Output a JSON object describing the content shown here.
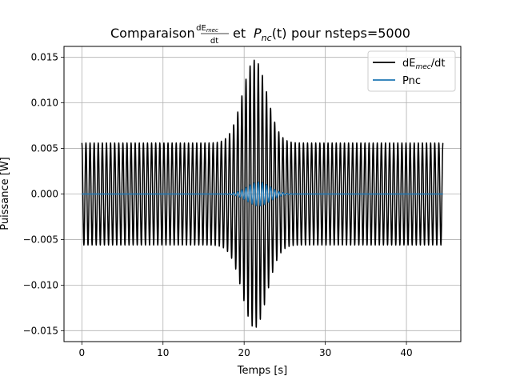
{
  "chart_data": {
    "type": "line",
    "title_main": "Comparaison",
    "title_frac_num": "dE",
    "title_frac_num_sub": "mec",
    "title_frac_den": "dt",
    "title_et": "et",
    "title_P": "P",
    "title_P_sub": "nc",
    "title_P_arg": "(t)",
    "title_tail": "pour nsteps=5000",
    "xlabel": "Temps [s]",
    "ylabel": "Puissance [W]",
    "xlim": [
      -2.2,
      46.7
    ],
    "ylim": [
      -0.0162,
      0.0162
    ],
    "xticks": [
      0,
      10,
      20,
      30,
      40
    ],
    "xtick_labels": [
      "0",
      "10",
      "20",
      "30",
      "40"
    ],
    "yticks": [
      -0.015,
      -0.01,
      -0.005,
      0.0,
      0.005,
      0.01,
      0.015
    ],
    "ytick_labels": [
      "−0.015",
      "−0.010",
      "−0.005",
      "0.000",
      "0.005",
      "0.010",
      "0.015"
    ],
    "grid": true,
    "legend_position": "top-right",
    "series": [
      {
        "name": "dE",
        "name_sub": "mec",
        "name_tail": "/dt",
        "color": "#000000",
        "oscillation": {
          "t_start": 0.0,
          "t_end": 44.5,
          "cycles": 88,
          "base_amplitude": 0.0056,
          "peak_amplitude": 0.0147,
          "peak_time": 21.3,
          "peak_width": 2.1
        }
      },
      {
        "name": "Pnc",
        "color": "#1f77b4",
        "oscillation": {
          "t_start": 0.0,
          "t_end": 44.5,
          "cycles": 88,
          "base_amplitude": 0.0,
          "peak_amplitude": 0.0013,
          "peak_time": 21.8,
          "peak_width": 2.0
        }
      }
    ]
  }
}
